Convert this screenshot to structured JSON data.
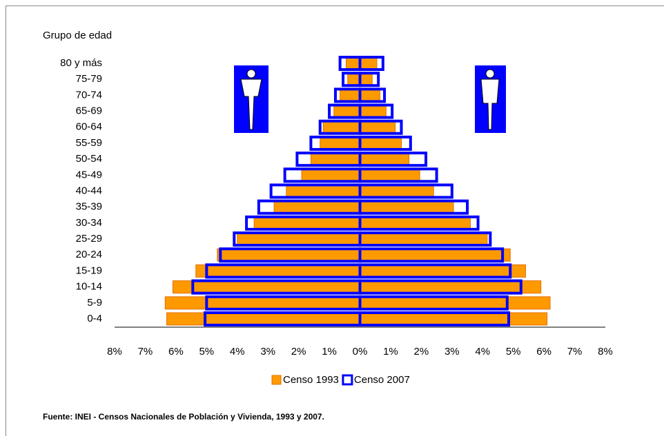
{
  "chart_data": {
    "type": "pyramid",
    "y_axis_label": "Grupo de edad",
    "categories": [
      "0-4",
      "5-9",
      "10-14",
      "15-19",
      "20-24",
      "25-29",
      "30-34",
      "35-39",
      "40-44",
      "45-49",
      "50-54",
      "55-59",
      "60-64",
      "65-69",
      "70-74",
      "75-79",
      "80 y más"
    ],
    "series": [
      {
        "name": "Censo 1993",
        "color": "#ff9900",
        "male": [
          -6.3,
          -6.35,
          -6.1,
          -5.35,
          -4.65,
          -4.0,
          -3.45,
          -2.8,
          -2.4,
          -1.9,
          -1.6,
          -1.3,
          -1.2,
          -0.85,
          -0.65,
          -0.4,
          -0.45
        ],
        "female": [
          6.1,
          6.2,
          5.9,
          5.4,
          4.9,
          4.15,
          3.6,
          3.05,
          2.4,
          1.95,
          1.6,
          1.35,
          1.15,
          0.85,
          0.65,
          0.4,
          0.55
        ]
      },
      {
        "name": "Censo 2007",
        "color": "#0000ff",
        "male": [
          -5.05,
          -5.0,
          -5.45,
          -5.0,
          -4.55,
          -4.1,
          -3.7,
          -3.3,
          -2.9,
          -2.45,
          -2.05,
          -1.6,
          -1.3,
          -1.0,
          -0.8,
          -0.55,
          -0.65
        ],
        "female": [
          4.85,
          4.8,
          5.25,
          4.9,
          4.65,
          4.25,
          3.85,
          3.5,
          3.0,
          2.5,
          2.15,
          1.65,
          1.35,
          1.05,
          0.8,
          0.6,
          0.75
        ]
      }
    ],
    "xlim": [
      -8,
      8
    ],
    "xticks": [
      {
        "value": -8,
        "label": "8%"
      },
      {
        "value": -7,
        "label": "7%"
      },
      {
        "value": -6,
        "label": "6%"
      },
      {
        "value": -5,
        "label": "5%"
      },
      {
        "value": -4,
        "label": "4%"
      },
      {
        "value": -3,
        "label": "3%"
      },
      {
        "value": -2,
        "label": "2%"
      },
      {
        "value": -1,
        "label": "1%"
      },
      {
        "value": 0,
        "label": "0%"
      },
      {
        "value": 1,
        "label": "1%"
      },
      {
        "value": 2,
        "label": "2%"
      },
      {
        "value": 3,
        "label": "3%"
      },
      {
        "value": 4,
        "label": "4%"
      },
      {
        "value": 5,
        "label": "5%"
      },
      {
        "value": 6,
        "label": "6%"
      },
      {
        "value": 7,
        "label": "7%"
      },
      {
        "value": 8,
        "label": "8%"
      }
    ],
    "source": "Fuente: INEI - Censos Nacionales de Población y Vivienda, 1993 y 2007."
  }
}
